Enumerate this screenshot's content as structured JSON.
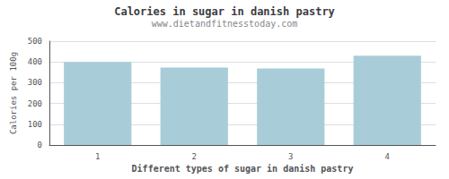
{
  "chart_data": {
    "type": "bar",
    "title": "Calories in sugar in danish pastry",
    "subtitle": "www.dietandfitnesstoday.com",
    "xlabel": "Different types of sugar in danish pastry",
    "ylabel": "Calories per 100g",
    "categories": [
      "1",
      "2",
      "3",
      "4"
    ],
    "values": [
      400,
      373,
      368,
      430
    ],
    "color": "#a8cdd8",
    "ylim": [
      0,
      500
    ],
    "yticks": [
      0,
      100,
      200,
      300,
      400,
      500
    ],
    "grid": true
  }
}
